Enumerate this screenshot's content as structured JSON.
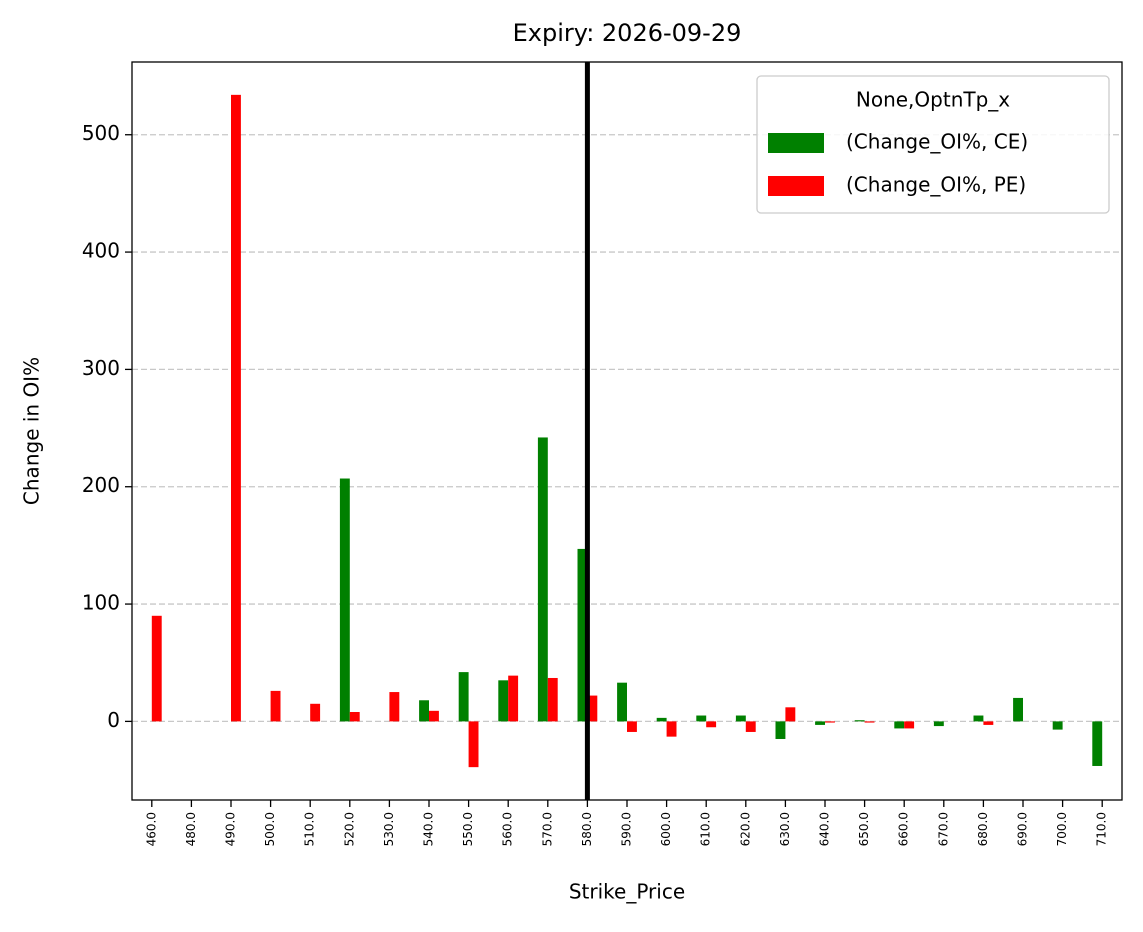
{
  "chart_data": {
    "type": "bar",
    "title": "Expiry: 2026-09-29",
    "x_label": "Strike_Price",
    "y_label": "Change in OI%",
    "categories": [
      "460.0",
      "480.0",
      "490.0",
      "500.0",
      "510.0",
      "520.0",
      "530.0",
      "540.0",
      "550.0",
      "560.0",
      "570.0",
      "580.0",
      "590.0",
      "600.0",
      "610.0",
      "620.0",
      "630.0",
      "640.0",
      "650.0",
      "660.0",
      "670.0",
      "680.0",
      "690.0",
      "700.0",
      "710.0"
    ],
    "series": [
      {
        "name": "(Change_OI%, CE)",
        "color": "#008000",
        "values": [
          null,
          null,
          null,
          null,
          null,
          207,
          null,
          18,
          42,
          35,
          242,
          147,
          33,
          3,
          5,
          5,
          -15,
          -3,
          1,
          -6,
          -4,
          5,
          20,
          -7,
          -38
        ]
      },
      {
        "name": "(Change_OI%, PE)",
        "color": "#ff0000",
        "values": [
          90,
          null,
          534,
          26,
          15,
          8,
          25,
          9,
          -39,
          39,
          37,
          22,
          -9,
          -13,
          -5,
          -9,
          12,
          -1,
          -1,
          -6,
          null,
          -3,
          null,
          null,
          null
        ]
      }
    ],
    "legend_title": "None,OptnTp_x",
    "legend": "upper right",
    "vline_index": 11,
    "ylim": [
      -67,
      562
    ],
    "yticks": [
      0,
      100,
      200,
      300,
      400,
      500
    ],
    "grid": true
  }
}
